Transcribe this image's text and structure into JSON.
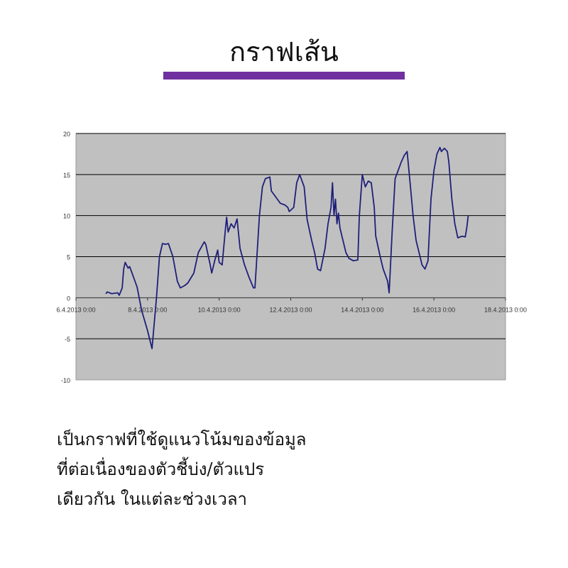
{
  "slide": {
    "title": "กราฟเส้น",
    "accent_color": "#7030A0",
    "body_lines": [
      "เป็นกราฟที่ใช้ดูแนวโน้มของข้อมูล",
      "ที่ต่อเนื่องของตัวชี้บ่ง/ตัวแปร",
      "เดียวกัน ในแต่ละช่วงเวลา"
    ]
  },
  "chart_data": {
    "type": "line",
    "title": "",
    "xlabel": "",
    "ylabel": "",
    "xlim": [
      "2013-04-06T00:00",
      "2013-04-18T00:00"
    ],
    "ylim": [
      -10,
      20
    ],
    "y_ticks": [
      20,
      15,
      10,
      5,
      0,
      -5,
      -10
    ],
    "x_ticks": [
      {
        "t": "2013-04-06T00:00",
        "label": "6.4.2013 0:00"
      },
      {
        "t": "2013-04-08T00:00",
        "label": "8.4.2013 0:00"
      },
      {
        "t": "2013-04-10T00:00",
        "label": "10.4.2013 0:00"
      },
      {
        "t": "2013-04-12T00:00",
        "label": "12.4.2013 0:00"
      },
      {
        "t": "2013-04-14T00:00",
        "label": "14.4.2013 0:00"
      },
      {
        "t": "2013-04-16T00:00",
        "label": "16.4.2013 0:00"
      },
      {
        "t": "2013-04-18T00:00",
        "label": "18.4.2013 0:00"
      }
    ],
    "grid": "horizontal",
    "legend": "none",
    "plot_background": "#C0C0C0",
    "line_color": "#1F1F7A",
    "series": [
      {
        "points": [
          [
            "2013-04-06T20:00",
            0.5
          ],
          [
            "2013-04-06T21:00",
            0.7
          ],
          [
            "2013-04-07T00:00",
            0.5
          ],
          [
            "2013-04-07T04:00",
            0.6
          ],
          [
            "2013-04-07T05:00",
            0.3
          ],
          [
            "2013-04-07T07:00",
            1.2
          ],
          [
            "2013-04-07T08:00",
            3.5
          ],
          [
            "2013-04-07T09:00",
            4.3
          ],
          [
            "2013-04-07T11:00",
            3.6
          ],
          [
            "2013-04-07T12:00",
            3.8
          ],
          [
            "2013-04-07T14:00",
            2.8
          ],
          [
            "2013-04-07T16:00",
            1.8
          ],
          [
            "2013-04-07T17:00",
            1.3
          ],
          [
            "2013-04-07T20:00",
            -1.5
          ],
          [
            "2013-04-08T00:00",
            -4
          ],
          [
            "2013-04-08T03:00",
            -6.2
          ],
          [
            "2013-04-08T06:00",
            0
          ],
          [
            "2013-04-08T08:00",
            5
          ],
          [
            "2013-04-08T10:00",
            6.6
          ],
          [
            "2013-04-08T12:00",
            6.5
          ],
          [
            "2013-04-08T14:00",
            6.6
          ],
          [
            "2013-04-08T17:00",
            5
          ],
          [
            "2013-04-08T20:00",
            2
          ],
          [
            "2013-04-08T22:00",
            1.2
          ],
          [
            "2013-04-09T01:00",
            1.5
          ],
          [
            "2013-04-09T03:00",
            1.8
          ],
          [
            "2013-04-09T07:00",
            3
          ],
          [
            "2013-04-09T10:00",
            5.5
          ],
          [
            "2013-04-09T14:00",
            6.8
          ],
          [
            "2013-04-09T15:00",
            6.5
          ],
          [
            "2013-04-09T18:00",
            4
          ],
          [
            "2013-04-09T19:00",
            3
          ],
          [
            "2013-04-09T21:00",
            4.5
          ],
          [
            "2013-04-09T23:00",
            5.8
          ],
          [
            "2013-04-10T00:00",
            4.3
          ],
          [
            "2013-04-10T02:00",
            4
          ],
          [
            "2013-04-10T04:00",
            8
          ],
          [
            "2013-04-10T05:00",
            9.8
          ],
          [
            "2013-04-10T06:00",
            8
          ],
          [
            "2013-04-10T08:00",
            9
          ],
          [
            "2013-04-10T10:00",
            8.5
          ],
          [
            "2013-04-10T12:00",
            9.6
          ],
          [
            "2013-04-10T14:00",
            6
          ],
          [
            "2013-04-10T17:00",
            4
          ],
          [
            "2013-04-10T20:00",
            2.5
          ],
          [
            "2013-04-10T23:00",
            1.2
          ],
          [
            "2013-04-11T00:00",
            1.2
          ],
          [
            "2013-04-11T03:00",
            10
          ],
          [
            "2013-04-11T05:00",
            13.5
          ],
          [
            "2013-04-11T07:00",
            14.5
          ],
          [
            "2013-04-11T10:00",
            14.7
          ],
          [
            "2013-04-11T11:00",
            13
          ],
          [
            "2013-04-11T15:00",
            12
          ],
          [
            "2013-04-11T17:00",
            11.5
          ],
          [
            "2013-04-11T20:00",
            11.3
          ],
          [
            "2013-04-11T22:00",
            11
          ],
          [
            "2013-04-11T23:00",
            10.5
          ],
          [
            "2013-04-12T02:00",
            11
          ],
          [
            "2013-04-12T04:00",
            14
          ],
          [
            "2013-04-12T06:00",
            15
          ],
          [
            "2013-04-12T09:00",
            13.5
          ],
          [
            "2013-04-12T11:00",
            9.5
          ],
          [
            "2013-04-12T14:00",
            7
          ],
          [
            "2013-04-12T16:00",
            5.5
          ],
          [
            "2013-04-12T18:00",
            3.5
          ],
          [
            "2013-04-12T20:00",
            3.3
          ],
          [
            "2013-04-12T23:00",
            6
          ],
          [
            "2013-04-13T01:00",
            9
          ],
          [
            "2013-04-13T03:00",
            11
          ],
          [
            "2013-04-13T04:00",
            14
          ],
          [
            "2013-04-13T05:00",
            10
          ],
          [
            "2013-04-13T06:00",
            12
          ],
          [
            "2013-04-13T07:00",
            9
          ],
          [
            "2013-04-13T08:00",
            10.3
          ],
          [
            "2013-04-13T09:00",
            8.5
          ],
          [
            "2013-04-13T11:00",
            7
          ],
          [
            "2013-04-13T13:00",
            5.5
          ],
          [
            "2013-04-13T15:00",
            4.8
          ],
          [
            "2013-04-13T18:00",
            4.5
          ],
          [
            "2013-04-13T21:00",
            4.6
          ],
          [
            "2013-04-13T22:00",
            10
          ],
          [
            "2013-04-14T00:00",
            15
          ],
          [
            "2013-04-14T02:00",
            13.5
          ],
          [
            "2013-04-14T04:00",
            14.2
          ],
          [
            "2013-04-14T06:00",
            14
          ],
          [
            "2013-04-14T08:00",
            11
          ],
          [
            "2013-04-14T09:00",
            7.5
          ],
          [
            "2013-04-14T12:00",
            5
          ],
          [
            "2013-04-14T14:00",
            3.5
          ],
          [
            "2013-04-14T17:00",
            2
          ],
          [
            "2013-04-14T18:00",
            0.6
          ],
          [
            "2013-04-14T20:00",
            8
          ],
          [
            "2013-04-14T22:00",
            14.5
          ],
          [
            "2013-04-15T00:00",
            15.5
          ],
          [
            "2013-04-15T02:00",
            16.5
          ],
          [
            "2013-04-15T04:00",
            17.3
          ],
          [
            "2013-04-15T06:00",
            17.8
          ],
          [
            "2013-04-15T08:00",
            14
          ],
          [
            "2013-04-15T10:00",
            10
          ],
          [
            "2013-04-15T12:00",
            7
          ],
          [
            "2013-04-15T14:00",
            5.5
          ],
          [
            "2013-04-15T16:00",
            4
          ],
          [
            "2013-04-15T18:00",
            3.5
          ],
          [
            "2013-04-15T20:00",
            4.5
          ],
          [
            "2013-04-15T22:00",
            12
          ],
          [
            "2013-04-16T00:00",
            15.5
          ],
          [
            "2013-04-16T02:00",
            17.5
          ],
          [
            "2013-04-16T04:00",
            18.3
          ],
          [
            "2013-04-16T05:00",
            17.8
          ],
          [
            "2013-04-16T07:00",
            18.2
          ],
          [
            "2013-04-16T09:00",
            17.8
          ],
          [
            "2013-04-16T10:00",
            16.5
          ],
          [
            "2013-04-16T12:00",
            12
          ],
          [
            "2013-04-16T14:00",
            9
          ],
          [
            "2013-04-16T16:00",
            7.3
          ],
          [
            "2013-04-16T19:00",
            7.5
          ],
          [
            "2013-04-16T21:00",
            7.4
          ],
          [
            "2013-04-16T22:00",
            8.5
          ],
          [
            "2013-04-16T23:00",
            10
          ]
        ]
      }
    ]
  }
}
